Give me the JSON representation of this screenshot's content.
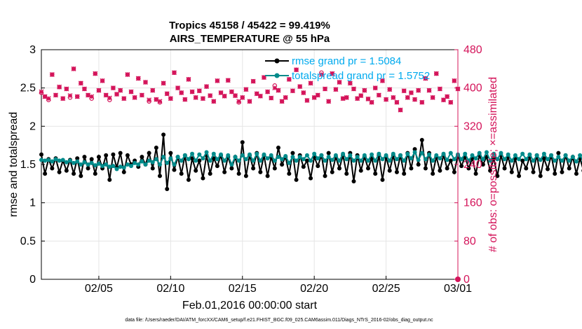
{
  "chart_data": {
    "type": "line",
    "title": "Tropics 45158 / 45422 = 99.419%",
    "subtitle": "AIRS_TEMPERATURE @ 55 hPa",
    "xlabel": "Feb.01,2016 00:00:00 start",
    "ylabel_left": "rmse and totalspread",
    "ylabel_right": "# of obs: o=possible; ×=assimilated",
    "footnote": "data file: /Users/raeder/DAI/ATM_forcXX/CAM6_setup/f.e21.FHIST_BGC.f09_025.CAM6assim.011/Diags_NTrS_2016-02/obs_diag_output.nc",
    "xlim": [
      1,
      30
    ],
    "x_tick_values": [
      5,
      10,
      15,
      20,
      25,
      30
    ],
    "x_tick_labels": [
      "02/05",
      "02/10",
      "02/15",
      "02/20",
      "02/25",
      "03/01"
    ],
    "ylim_left": [
      0,
      3
    ],
    "y_ticks_left": [
      "0",
      "0.5",
      "1",
      "1.5",
      "2",
      "2.5",
      "3"
    ],
    "ylim_right": [
      0,
      480
    ],
    "y_ticks_right": [
      "0",
      "80",
      "160",
      "240",
      "320",
      "400",
      "480"
    ],
    "grid": true,
    "legend_position": "top-right",
    "series": [
      {
        "name": "rmse grand pr = 1.5084",
        "axis": "left",
        "color": "#000000",
        "marker": "circle",
        "x_start": 1.0,
        "x_step": 0.25,
        "values": [
          1.63,
          1.38,
          1.57,
          1.45,
          1.58,
          1.4,
          1.55,
          1.42,
          1.56,
          1.38,
          1.58,
          1.35,
          1.6,
          1.45,
          1.57,
          1.38,
          1.6,
          1.45,
          1.62,
          1.3,
          1.63,
          1.46,
          1.65,
          1.4,
          1.62,
          1.5,
          1.55,
          1.47,
          1.6,
          1.5,
          1.65,
          1.45,
          1.72,
          1.35,
          1.89,
          1.18,
          1.65,
          1.43,
          1.6,
          1.38,
          1.62,
          1.3,
          1.58,
          1.42,
          1.55,
          1.32,
          1.62,
          1.38,
          1.58,
          1.48,
          1.62,
          1.4,
          1.6,
          1.45,
          1.6,
          1.38,
          1.79,
          1.35,
          1.62,
          1.45,
          1.65,
          1.4,
          1.62,
          1.35,
          1.6,
          1.45,
          1.72,
          1.5,
          1.6,
          1.38,
          1.65,
          1.3,
          1.62,
          1.47,
          1.55,
          1.32,
          1.6,
          1.48,
          1.62,
          1.35,
          1.65,
          1.4,
          1.6,
          1.45,
          1.62,
          1.38,
          1.65,
          1.28,
          1.62,
          1.42,
          1.6,
          1.45,
          1.58,
          1.38,
          1.62,
          1.3,
          1.6,
          1.42,
          1.62,
          1.4,
          1.62,
          1.38,
          1.65,
          1.45,
          1.7,
          1.5,
          1.82,
          1.45,
          1.65,
          1.38,
          1.6,
          1.42,
          1.62,
          1.45,
          1.55,
          1.4,
          1.62,
          1.48,
          1.6,
          1.45,
          1.58,
          1.38,
          1.62,
          1.5,
          1.6,
          1.42,
          1.58,
          1.35,
          1.62,
          1.45,
          1.6,
          1.4,
          1.58,
          1.35,
          1.55,
          1.45,
          1.6,
          1.4,
          1.62,
          1.35,
          1.58,
          1.44,
          1.62,
          1.38,
          1.65,
          1.4,
          1.62,
          1.45,
          1.6,
          1.38,
          1.58,
          1.42,
          1.62,
          1.38,
          1.65,
          1.4,
          1.6,
          1.38,
          1.62,
          1.42,
          1.58,
          1.32,
          1.6,
          1.44,
          1.62,
          1.36,
          1.58,
          1.44,
          1.45,
          1.43,
          1.44,
          1.45
        ]
      },
      {
        "name": "totalspread grand pr = 1.5752",
        "axis": "left",
        "color": "#008b8b",
        "marker": "circle",
        "x_start": 1.0,
        "x_step": 0.25,
        "values": [
          1.56,
          1.55,
          1.56,
          1.54,
          1.57,
          1.55,
          1.56,
          1.53,
          1.55,
          1.52,
          1.54,
          1.5,
          1.53,
          1.5,
          1.52,
          1.49,
          1.51,
          1.48,
          1.5,
          1.47,
          1.48,
          1.44,
          1.47,
          1.46,
          1.5,
          1.48,
          1.52,
          1.5,
          1.54,
          1.5,
          1.55,
          1.53,
          1.57,
          1.5,
          1.6,
          1.52,
          1.58,
          1.5,
          1.6,
          1.55,
          1.62,
          1.57,
          1.64,
          1.55,
          1.63,
          1.58,
          1.66,
          1.55,
          1.64,
          1.57,
          1.63,
          1.55,
          1.62,
          1.5,
          1.6,
          1.55,
          1.62,
          1.57,
          1.63,
          1.55,
          1.64,
          1.55,
          1.63,
          1.58,
          1.62,
          1.55,
          1.6,
          1.57,
          1.61,
          1.52,
          1.6,
          1.55,
          1.6,
          1.57,
          1.62,
          1.55,
          1.64,
          1.58,
          1.62,
          1.55,
          1.6,
          1.56,
          1.62,
          1.55,
          1.64,
          1.57,
          1.62,
          1.55,
          1.6,
          1.55,
          1.62,
          1.55,
          1.63,
          1.55,
          1.64,
          1.57,
          1.62,
          1.55,
          1.64,
          1.57,
          1.62,
          1.55,
          1.64,
          1.58,
          1.66,
          1.56,
          1.65,
          1.57,
          1.63,
          1.55,
          1.62,
          1.58,
          1.64,
          1.56,
          1.65,
          1.57,
          1.63,
          1.57,
          1.64,
          1.55,
          1.62,
          1.58,
          1.65,
          1.57,
          1.66,
          1.55,
          1.64,
          1.57,
          1.65,
          1.57,
          1.63,
          1.55,
          1.62,
          1.57,
          1.64,
          1.57,
          1.63,
          1.55,
          1.62,
          1.56,
          1.64,
          1.57,
          1.62,
          1.55,
          1.6,
          1.55,
          1.62,
          1.55,
          1.6,
          1.54,
          1.62,
          1.54,
          1.6,
          1.55,
          1.61,
          1.54,
          1.6,
          1.55,
          1.62,
          1.55,
          1.6,
          1.56,
          1.62,
          1.56,
          1.64,
          1.55,
          1.5,
          1.48,
          1.49,
          1.5
        ]
      },
      {
        "name": "obs possible",
        "axis": "right",
        "color": "#d4145a",
        "marker": "o",
        "x_start": 1.0,
        "x_step": 0.25,
        "values": [
          390,
          382,
          375,
          428,
          385,
          402,
          378,
          398,
          380,
          440,
          382,
          410,
          398,
          385,
          378,
          430,
          395,
          415,
          385,
          375,
          400,
          387,
          395,
          378,
          428,
          392,
          380,
          420,
          385,
          412,
          372,
          395,
          376,
          370,
          410,
          388,
          378,
          432,
          400,
          390,
          376,
          418,
          392,
          380,
          394,
          378,
          403,
          384,
          372,
          415,
          390,
          383,
          416,
          392,
          384,
          370,
          380,
          397,
          372,
          414,
          388,
          383,
          422,
          392,
          379,
          405,
          395,
          372,
          380,
          418,
          394,
          438,
          403,
          390,
          374,
          410,
          380,
          385,
          432,
          398,
          372,
          430,
          397,
          412,
          378,
          380,
          410,
          398,
          378,
          384,
          395,
          377,
          370,
          400,
          385,
          415,
          376,
          397,
          380,
          370,
          354,
          394,
          380,
          390,
          376,
          395,
          370,
          420,
          395,
          380,
          430,
          398,
          375,
          382,
          370,
          415,
          398,
          385,
          420,
          394,
          372,
          388,
          415,
          378,
          400,
          370,
          385,
          398,
          375,
          400,
          380,
          388,
          372,
          392,
          372,
          420,
          395,
          385,
          376,
          392,
          380,
          405,
          398,
          388,
          372,
          385,
          380,
          395,
          372,
          385,
          400,
          415,
          380,
          398,
          378,
          385,
          400,
          380,
          370,
          392,
          384,
          376,
          398,
          440,
          376,
          380,
          378,
          382
        ]
      },
      {
        "name": "obs assimilated",
        "axis": "right",
        "color": "#d4145a",
        "marker": "x",
        "x_start": 1.0,
        "x_step": 0.25,
        "values": [
          392,
          382,
          378,
          428,
          385,
          402,
          378,
          398,
          384,
          440,
          382,
          410,
          398,
          385,
          382,
          430,
          395,
          415,
          385,
          379,
          400,
          387,
          395,
          378,
          428,
          392,
          380,
          420,
          385,
          412,
          375,
          395,
          376,
          372,
          410,
          388,
          378,
          432,
          400,
          390,
          376,
          418,
          392,
          380,
          394,
          378,
          403,
          384,
          372,
          415,
          390,
          383,
          416,
          392,
          384,
          372,
          380,
          397,
          372,
          414,
          388,
          383,
          422,
          392,
          379,
          400,
          395,
          372,
          380,
          418,
          394,
          438,
          403,
          390,
          374,
          410,
          380,
          385,
          428,
          398,
          372,
          430,
          397,
          412,
          378,
          380,
          410,
          398,
          378,
          384,
          395,
          377,
          370,
          400,
          385,
          415,
          376,
          397,
          380,
          370,
          354,
          394,
          380,
          390,
          376,
          395,
          370,
          420,
          395,
          380,
          430,
          398,
          375,
          382,
          370,
          415,
          398,
          385,
          420,
          394,
          372,
          388,
          415,
          378,
          400,
          370,
          385,
          398,
          375,
          400,
          380,
          388,
          372,
          392,
          372,
          420,
          395,
          385,
          376,
          392,
          380,
          405,
          398,
          388,
          372,
          385,
          380,
          395,
          372,
          385,
          400,
          415,
          380,
          398,
          378,
          385,
          400,
          380,
          372,
          392,
          384,
          376,
          398,
          440,
          376,
          380,
          378,
          382
        ]
      }
    ]
  },
  "colors": {
    "left_axis": "#000000",
    "right_axis": "#d4145a",
    "legend_text": "#00aaee",
    "grid": "#e5e5e5"
  }
}
